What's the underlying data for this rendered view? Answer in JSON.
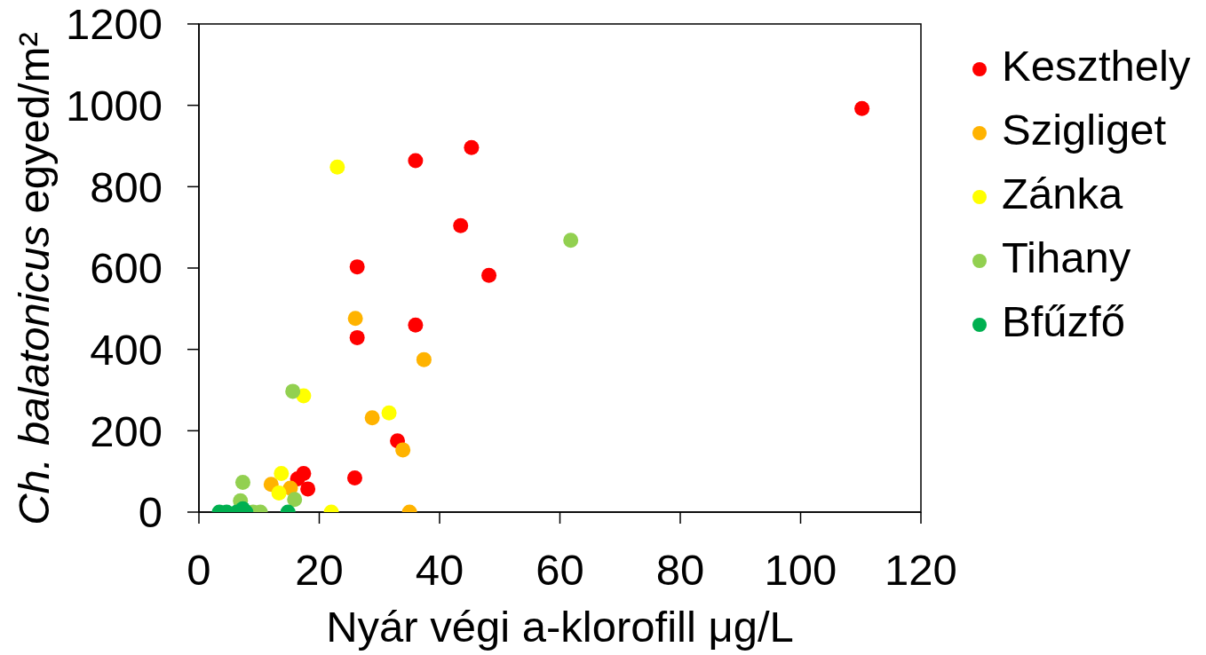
{
  "chart_data": {
    "type": "scatter",
    "xlabel": "Nyár végi a-klorofill μg/L",
    "ylabel": "Ch. balatonicus egyed/m²",
    "xlim": [
      0,
      120
    ],
    "xticks": [
      0,
      20,
      40,
      60,
      80,
      100,
      120
    ],
    "ylim": [
      0,
      1200
    ],
    "yticks": [
      0,
      200,
      400,
      600,
      800,
      1000,
      1200
    ],
    "legend": "right",
    "marker": "circle",
    "series": [
      {
        "name": "Keszthely",
        "color": "#ff0000",
        "x": [
          110.2,
          45.3,
          36.0,
          43.5,
          26.3,
          48.2,
          36.0,
          26.3,
          33.0,
          17.4,
          25.9,
          16.4,
          18.1
        ],
        "values": [
          992,
          896,
          864,
          704,
          603,
          582,
          460,
          429,
          175,
          95,
          84,
          82,
          57
        ]
      },
      {
        "name": "Szigliget",
        "color": "#ffb300",
        "x": [
          26.0,
          37.4,
          28.8,
          33.9,
          12.0,
          15.2,
          35.0
        ],
        "values": [
          476,
          375,
          232,
          153,
          68,
          59,
          0
        ]
      },
      {
        "name": "Zánka",
        "color": "#ffff00",
        "x": [
          23.0,
          17.4,
          31.6,
          13.7,
          13.3,
          22.0
        ],
        "values": [
          848,
          286,
          244,
          95,
          47,
          0
        ]
      },
      {
        "name": "Tihany",
        "color": "#92d050",
        "x": [
          61.8,
          15.6,
          7.3,
          15.9,
          6.9,
          9.0,
          10.2
        ],
        "values": [
          668,
          297,
          73,
          31,
          28,
          0,
          0
        ]
      },
      {
        "name": "Bfűzfő",
        "color": "#00b050",
        "x": [
          3.4,
          4.6,
          6.3,
          7.8,
          14.8,
          7.3
        ],
        "values": [
          0,
          0,
          0,
          0,
          0,
          8
        ]
      }
    ]
  }
}
